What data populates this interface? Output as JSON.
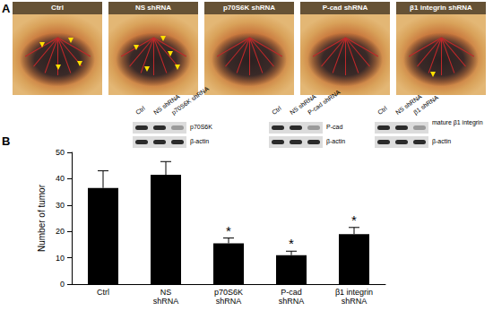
{
  "panels": {
    "a": {
      "label": "A",
      "photos": [
        "Ctrl",
        "NS shRNA",
        "p70S6K shRNA",
        "P-cad shRNA",
        "β1 integrin shRNA"
      ]
    },
    "b": {
      "label": "B"
    }
  },
  "blots": [
    {
      "lanes": [
        "Ctrl",
        "NS shRNA",
        "p70S6K shRNA"
      ],
      "rows": [
        "p70S6K",
        "β-actin"
      ]
    },
    {
      "lanes": [
        "Ctrl",
        "NS shRNA",
        "P-cad shRNA"
      ],
      "rows": [
        "P-cad",
        "β-actin"
      ]
    },
    {
      "lanes": [
        "Ctrl",
        "NS shRNA",
        "β1 shRNA"
      ],
      "rows": [
        "mature β1 integrin",
        "β-actin"
      ]
    }
  ],
  "chart_data": {
    "type": "bar",
    "categories": [
      "Ctrl",
      "NS shRNA",
      "p70S6K shRNA",
      "P-cad shRNA",
      "β1 integrin shRNA"
    ],
    "values": [
      36.5,
      41.5,
      15.5,
      11,
      19
    ],
    "errors": [
      6.5,
      5,
      2,
      1.5,
      2.5
    ],
    "significance": [
      null,
      null,
      "*",
      "*",
      "*"
    ],
    "y_label": "Number of tumor",
    "ylim": [
      0,
      50
    ],
    "yticks": [
      0,
      10,
      20,
      30,
      40,
      50
    ],
    "color": "#000000",
    "grid": false
  }
}
